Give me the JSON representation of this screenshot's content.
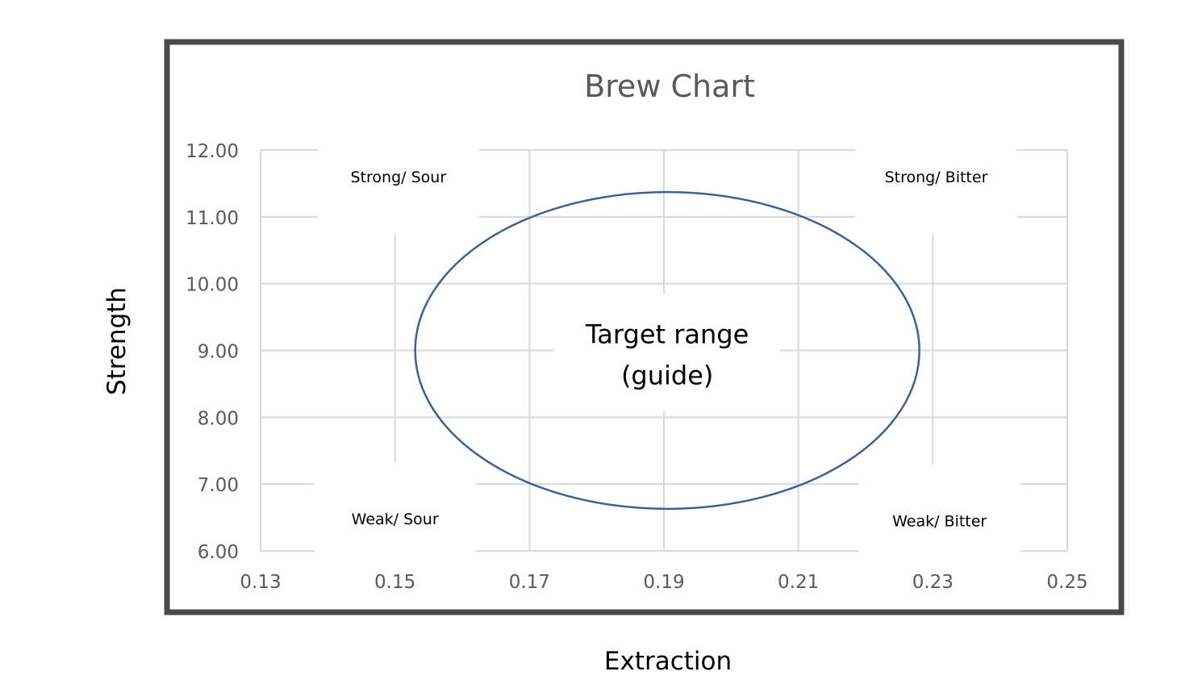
{
  "chart_data": {
    "type": "scatter",
    "title": "Brew Chart",
    "xlabel": "Extraction",
    "ylabel": "Strength",
    "xlim": [
      0.13,
      0.25
    ],
    "ylim": [
      6.0,
      12.0
    ],
    "x_ticks": [
      "0.13",
      "0.15",
      "0.17",
      "0.19",
      "0.21",
      "0.23",
      "0.25"
    ],
    "y_ticks": [
      "6.00",
      "7.00",
      "8.00",
      "9.00",
      "10.00",
      "11.00",
      "12.00"
    ],
    "grid": true,
    "legend": "none",
    "colors": {
      "ellipse": "#3f5f97",
      "grid": "#d9d9d9",
      "frame": "#4a4a4a",
      "tick_text": "#595959"
    },
    "target_ellipse": {
      "center": [
        0.1905,
        9.0
      ],
      "x_radius": 0.0375,
      "y_radius": 2.37
    },
    "annotations": [
      {
        "name": "strong-sour",
        "text": "Strong/ Sour",
        "x": 0.1505,
        "y": 11.6
      },
      {
        "name": "strong-bitter",
        "text": "Strong/ Bitter",
        "x": 0.2305,
        "y": 11.6
      },
      {
        "name": "weak-sour",
        "text": "Weak/ Sour",
        "x": 0.15,
        "y": 6.48
      },
      {
        "name": "weak-bitter",
        "text": "Weak/ Bitter",
        "x": 0.231,
        "y": 6.45
      }
    ],
    "target_label": [
      "Target range",
      "(guide)"
    ],
    "target_label_pos": {
      "x": 0.1905,
      "y": 9.0
    }
  }
}
